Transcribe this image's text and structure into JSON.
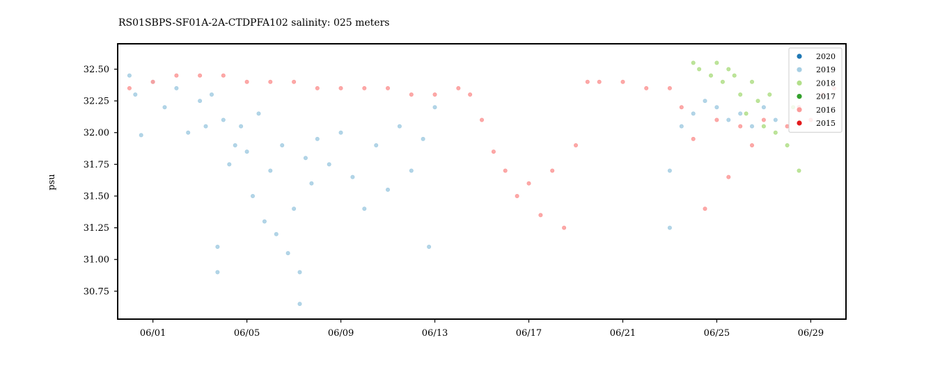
{
  "chart_data": {
    "type": "scatter",
    "title": "RS01SBPS-SF01A-2A-CTDPFA102 salinity: 025 meters",
    "xlabel": "",
    "ylabel": "psu",
    "xlim": [
      "05/30 12:00",
      "06/30 12:00"
    ],
    "ylim": [
      30.53,
      32.7
    ],
    "x_ticks": [
      "06/01",
      "06/05",
      "06/09",
      "06/13",
      "06/17",
      "06/21",
      "06/25",
      "06/29"
    ],
    "y_ticks": [
      "30.75",
      "31.00",
      "31.25",
      "31.50",
      "31.75",
      "32.00",
      "32.25",
      "32.50"
    ],
    "grid": false,
    "legend_position": "top-right",
    "series": [
      {
        "name": "2020",
        "color": "#1f78b4",
        "points": []
      },
      {
        "name": "2019",
        "color": "#a6cee3",
        "points": [
          [
            "05/31 00:00",
            32.45
          ],
          [
            "05/31 06:00",
            32.3
          ],
          [
            "05/31 12:00",
            31.98
          ],
          [
            "06/01 00:00",
            32.4
          ],
          [
            "06/01 12:00",
            32.2
          ],
          [
            "06/02 00:00",
            32.35
          ],
          [
            "06/02 12:00",
            32.0
          ],
          [
            "06/03 00:00",
            32.25
          ],
          [
            "06/03 06:00",
            32.05
          ],
          [
            "06/03 12:00",
            32.3
          ],
          [
            "06/03 18:00",
            31.1
          ],
          [
            "06/03 18:00",
            30.9
          ],
          [
            "06/04 00:00",
            32.1
          ],
          [
            "06/04 06:00",
            31.75
          ],
          [
            "06/04 12:00",
            31.9
          ],
          [
            "06/04 18:00",
            32.05
          ],
          [
            "06/05 00:00",
            31.85
          ],
          [
            "06/05 06:00",
            31.5
          ],
          [
            "06/05 12:00",
            32.15
          ],
          [
            "06/05 18:00",
            31.3
          ],
          [
            "06/06 00:00",
            31.7
          ],
          [
            "06/06 06:00",
            31.2
          ],
          [
            "06/06 12:00",
            31.9
          ],
          [
            "06/06 18:00",
            31.05
          ],
          [
            "06/07 00:00",
            31.4
          ],
          [
            "06/07 06:00",
            30.9
          ],
          [
            "06/07 06:00",
            30.65
          ],
          [
            "06/07 12:00",
            31.8
          ],
          [
            "06/07 18:00",
            31.6
          ],
          [
            "06/08 00:00",
            31.95
          ],
          [
            "06/08 12:00",
            31.75
          ],
          [
            "06/09 00:00",
            32.0
          ],
          [
            "06/09 12:00",
            31.65
          ],
          [
            "06/10 00:00",
            31.4
          ],
          [
            "06/10 12:00",
            31.9
          ],
          [
            "06/11 00:00",
            31.55
          ],
          [
            "06/11 12:00",
            32.05
          ],
          [
            "06/12 00:00",
            31.7
          ],
          [
            "06/12 12:00",
            31.95
          ],
          [
            "06/12 18:00",
            31.1
          ],
          [
            "06/13 00:00",
            32.2
          ],
          [
            "06/23 00:00",
            31.7
          ],
          [
            "06/23 00:00",
            31.25
          ],
          [
            "06/23 12:00",
            32.05
          ],
          [
            "06/24 00:00",
            32.15
          ],
          [
            "06/24 12:00",
            32.25
          ],
          [
            "06/25 00:00",
            32.2
          ],
          [
            "06/25 12:00",
            32.1
          ],
          [
            "06/26 00:00",
            32.15
          ],
          [
            "06/26 12:00",
            32.05
          ],
          [
            "06/27 00:00",
            32.2
          ],
          [
            "06/27 12:00",
            32.1
          ]
        ]
      },
      {
        "name": "2018",
        "color": "#b2df8a",
        "points": [
          [
            "06/24 00:00",
            32.55
          ],
          [
            "06/24 06:00",
            32.5
          ],
          [
            "06/24 18:00",
            32.45
          ],
          [
            "06/25 00:00",
            32.55
          ],
          [
            "06/25 06:00",
            32.4
          ],
          [
            "06/25 12:00",
            32.5
          ],
          [
            "06/25 18:00",
            32.45
          ],
          [
            "06/26 00:00",
            32.3
          ],
          [
            "06/26 06:00",
            32.15
          ],
          [
            "06/26 12:00",
            32.4
          ],
          [
            "06/26 18:00",
            32.25
          ],
          [
            "06/27 00:00",
            32.05
          ],
          [
            "06/27 06:00",
            32.3
          ],
          [
            "06/27 12:00",
            32.0
          ],
          [
            "06/28 00:00",
            31.9
          ],
          [
            "06/28 06:00",
            32.2
          ],
          [
            "06/28 12:00",
            31.7
          ]
        ]
      },
      {
        "name": "2017",
        "color": "#33a02c",
        "points": []
      },
      {
        "name": "2016",
        "color": "#fb9a99",
        "points": [
          [
            "05/31 00:00",
            32.35
          ],
          [
            "06/01 00:00",
            32.4
          ],
          [
            "06/02 00:00",
            32.45
          ],
          [
            "06/03 00:00",
            32.45
          ],
          [
            "06/04 00:00",
            32.45
          ],
          [
            "06/05 00:00",
            32.4
          ],
          [
            "06/06 00:00",
            32.4
          ],
          [
            "06/07 00:00",
            32.4
          ],
          [
            "06/08 00:00",
            32.35
          ],
          [
            "06/09 00:00",
            32.35
          ],
          [
            "06/10 00:00",
            32.35
          ],
          [
            "06/11 00:00",
            32.35
          ],
          [
            "06/12 00:00",
            32.3
          ],
          [
            "06/13 00:00",
            32.3
          ],
          [
            "06/14 00:00",
            32.35
          ],
          [
            "06/14 12:00",
            32.3
          ],
          [
            "06/15 00:00",
            32.1
          ],
          [
            "06/15 12:00",
            31.85
          ],
          [
            "06/16 00:00",
            31.7
          ],
          [
            "06/16 12:00",
            31.5
          ],
          [
            "06/17 00:00",
            31.6
          ],
          [
            "06/17 12:00",
            31.35
          ],
          [
            "06/18 00:00",
            31.7
          ],
          [
            "06/18 12:00",
            31.25
          ],
          [
            "06/19 00:00",
            31.9
          ],
          [
            "06/19 12:00",
            32.4
          ],
          [
            "06/20 00:00",
            32.4
          ],
          [
            "06/21 00:00",
            32.4
          ],
          [
            "06/22 00:00",
            32.35
          ],
          [
            "06/23 00:00",
            32.35
          ],
          [
            "06/23 12:00",
            32.2
          ],
          [
            "06/24 00:00",
            31.95
          ],
          [
            "06/24 12:00",
            31.4
          ],
          [
            "06/25 00:00",
            32.1
          ],
          [
            "06/25 12:00",
            31.65
          ],
          [
            "06/26 00:00",
            32.05
          ],
          [
            "06/26 12:00",
            31.9
          ],
          [
            "06/27 00:00",
            32.1
          ],
          [
            "06/28 00:00",
            32.05
          ],
          [
            "06/28 12:00",
            32.2
          ],
          [
            "06/29 00:00",
            32.1
          ],
          [
            "06/29 12:00",
            32.3
          ],
          [
            "06/30 00:00",
            32.35
          ]
        ]
      },
      {
        "name": "2015",
        "color": "#e31a1c",
        "points": []
      }
    ]
  }
}
